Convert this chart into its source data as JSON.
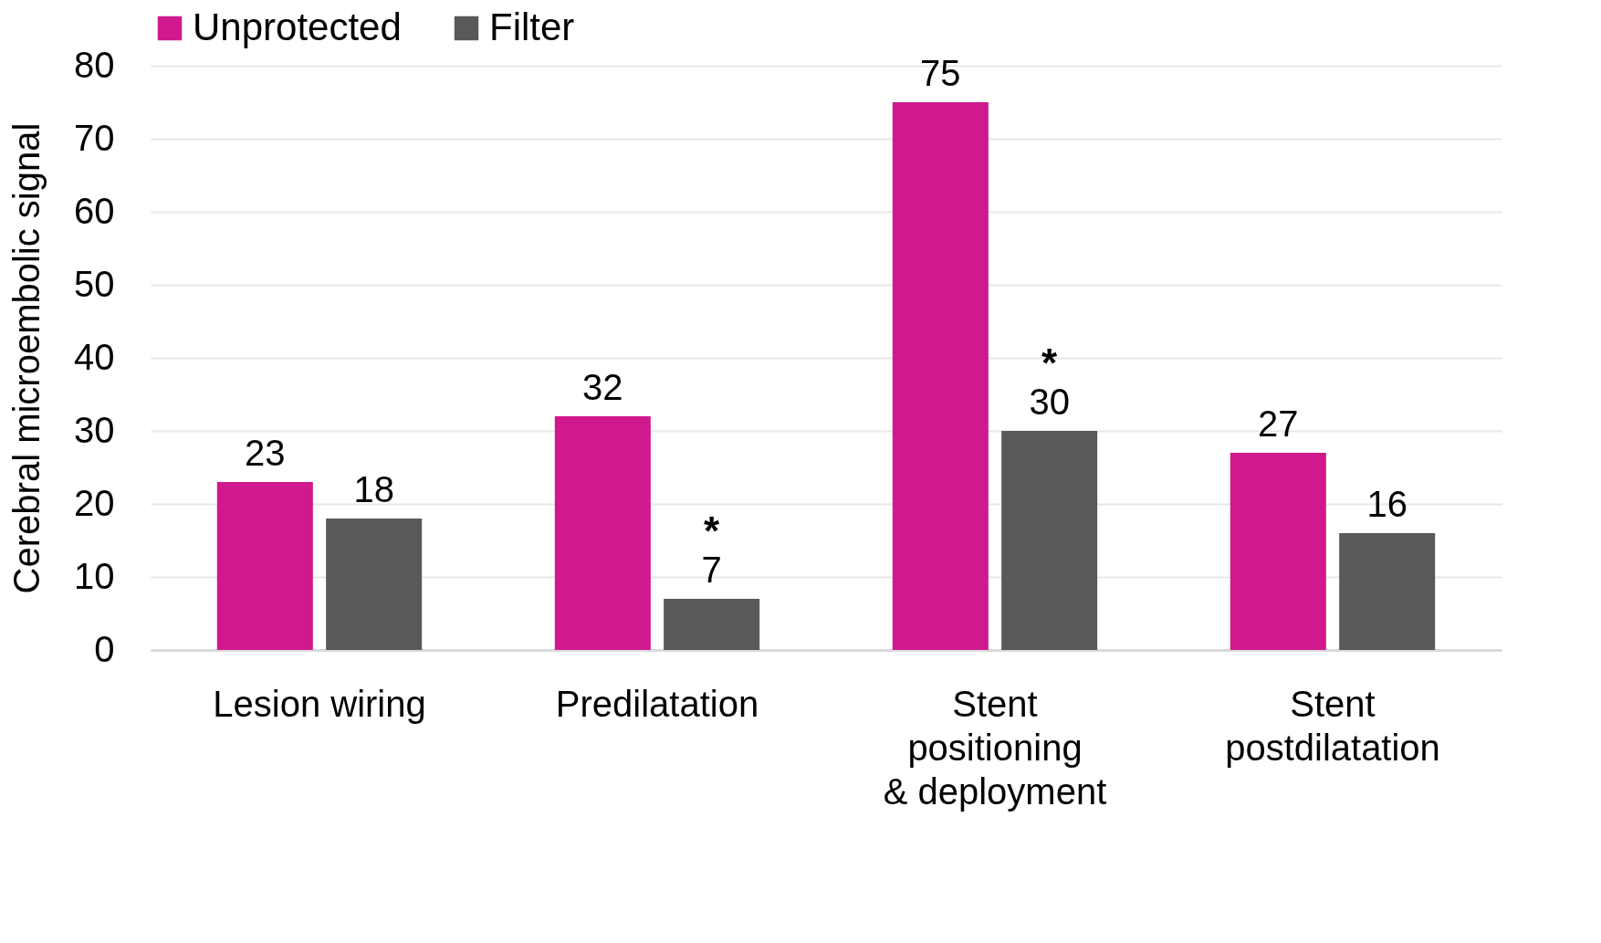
{
  "chart_data": {
    "type": "bar",
    "ylabel": "Cerebral microembolic signal",
    "categories": [
      "Lesion wiring",
      "Predilatation",
      "Stent positioning & deployment",
      "Stent postdilatation"
    ],
    "series": [
      {
        "name": "Unprotected",
        "color": "#d0198c",
        "values": [
          23,
          32,
          75,
          27
        ]
      },
      {
        "name": "Filter",
        "color": "#595959",
        "values": [
          18,
          7,
          30,
          16
        ]
      }
    ],
    "ylim": [
      0,
      80
    ],
    "yticks": [
      0,
      10,
      20,
      30,
      40,
      50,
      60,
      70,
      80
    ],
    "grid": "y",
    "legend": "top",
    "data_labels": true,
    "annotations": [
      "*",
      "*"
    ]
  }
}
